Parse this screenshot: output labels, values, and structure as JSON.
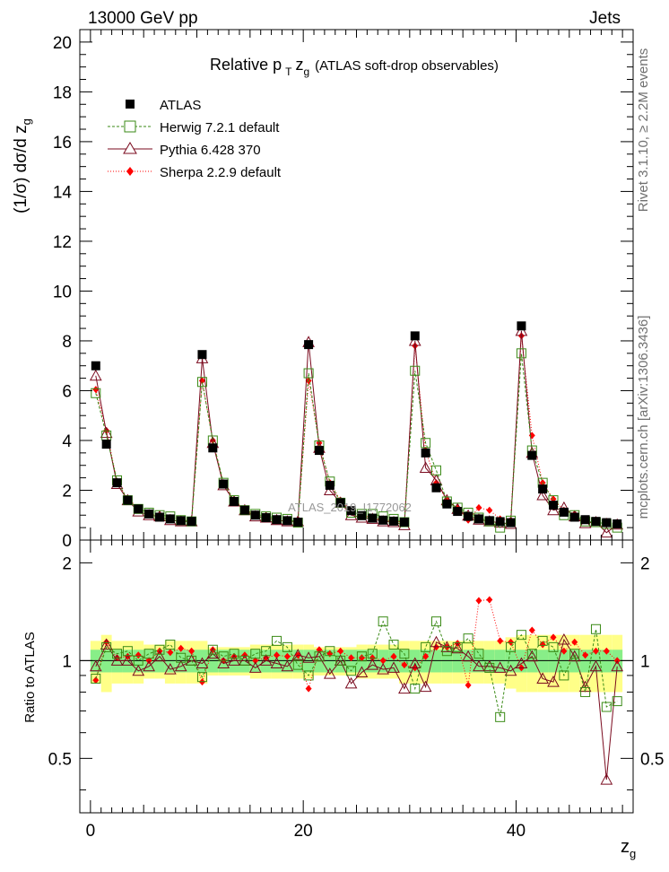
{
  "header": {
    "left": "13000 GeV pp",
    "right": "Jets"
  },
  "side_text": {
    "rivet": "Rivet 3.1.10, ≥ 2.2M events",
    "site": "mcplots.cern.ch [arXiv:1306.3436]"
  },
  "watermark": "ATLAS_2019_I1772062",
  "colors": {
    "atlas": "#000000",
    "herwig": "#3a8a16",
    "pythia": "#7a0a1e",
    "sherpa": "#ff0000",
    "band_inner": "#88ee88",
    "band_outer": "#ffff88"
  },
  "chart_data": [
    {
      "type": "line",
      "title": "Relative p_T z_g (ATLAS soft-drop observables)",
      "title_parts": {
        "main": "Relative p",
        "sub": "T",
        "var": "z",
        "varsub": "g",
        "rest": "(ATLAS soft-drop observables)"
      },
      "ylabel": "(1/σ) dσ/d z_g",
      "ylabel_parts": {
        "main": "(1/σ) dσ/d z",
        "sub": "g"
      },
      "xlim": [
        -1,
        51
      ],
      "ylim": [
        0,
        20.5
      ],
      "yticks": [
        0,
        2,
        4,
        6,
        8,
        10,
        12,
        14,
        16,
        18,
        20
      ],
      "x": [
        0.5,
        1.5,
        2.5,
        3.5,
        4.5,
        5.5,
        6.5,
        7.5,
        8.5,
        9.5,
        10.5,
        11.5,
        12.5,
        13.5,
        14.5,
        15.5,
        16.5,
        17.5,
        18.5,
        19.5,
        20.5,
        21.5,
        22.5,
        23.5,
        24.5,
        25.5,
        26.5,
        27.5,
        28.5,
        29.5,
        30.5,
        31.5,
        32.5,
        33.5,
        34.5,
        35.5,
        36.5,
        37.5,
        38.5,
        39.5,
        40.5,
        41.5,
        42.5,
        43.5,
        44.5,
        45.5,
        46.5,
        47.5,
        48.5,
        49.5
      ],
      "legend": [
        {
          "label": "ATLAS",
          "series": "atlas"
        },
        {
          "label": "Herwig 7.2.1 default",
          "series": "herwig"
        },
        {
          "label": "Pythia 6.428 370",
          "series": "pythia"
        },
        {
          "label": "Sherpa 2.2.9 default",
          "series": "sherpa"
        }
      ],
      "series": [
        {
          "name": "ATLAS",
          "key": "atlas",
          "values": [
            7.0,
            3.85,
            2.3,
            1.6,
            1.25,
            1.05,
            0.92,
            0.85,
            0.78,
            0.75,
            7.45,
            3.7,
            2.25,
            1.55,
            1.2,
            1.0,
            0.9,
            0.82,
            0.78,
            0.72,
            7.85,
            3.6,
            2.2,
            1.5,
            1.18,
            0.98,
            0.88,
            0.8,
            0.76,
            0.72,
            8.2,
            3.5,
            2.1,
            1.45,
            1.15,
            0.95,
            0.85,
            0.78,
            0.74,
            0.7,
            8.6,
            3.4,
            2.05,
            1.4,
            1.12,
            0.92,
            0.82,
            0.75,
            0.7,
            0.65
          ]
        },
        {
          "name": "Herwig 7.2.1 default",
          "key": "herwig",
          "values": [
            5.9,
            4.2,
            2.4,
            1.6,
            1.25,
            1.1,
            1.0,
            0.95,
            0.8,
            0.75,
            6.35,
            4.0,
            2.3,
            1.6,
            1.2,
            1.05,
            0.95,
            0.9,
            0.85,
            0.7,
            6.7,
            3.8,
            2.35,
            1.5,
            1.1,
            1.05,
            1.05,
            0.95,
            0.85,
            0.72,
            6.8,
            3.9,
            2.8,
            1.55,
            1.3,
            1.1,
            0.9,
            0.75,
            0.5,
            0.78,
            7.5,
            3.6,
            2.3,
            1.6,
            1.0,
            1.0,
            0.75,
            0.72,
            0.65,
            0.5
          ]
        },
        {
          "name": "Pythia 6.428 370",
          "key": "pythia",
          "values": [
            6.6,
            4.3,
            2.25,
            1.6,
            1.15,
            1.0,
            0.95,
            0.8,
            0.75,
            0.75,
            7.3,
            3.9,
            2.2,
            1.55,
            1.2,
            0.95,
            0.9,
            0.8,
            0.75,
            0.75,
            7.95,
            3.7,
            2.0,
            1.5,
            1.0,
            0.9,
            0.85,
            0.75,
            0.72,
            0.6,
            8.0,
            2.9,
            2.4,
            1.6,
            1.25,
            0.98,
            0.82,
            0.75,
            0.7,
            0.65,
            8.4,
            3.5,
            1.8,
            1.2,
            1.3,
            0.95,
            0.68,
            0.72,
            0.3,
            0.62
          ]
        },
        {
          "name": "Sherpa 2.2.9 default",
          "key": "sherpa",
          "values": [
            6.05,
            4.4,
            2.35,
            1.65,
            1.3,
            1.05,
            0.98,
            0.9,
            0.85,
            0.8,
            6.4,
            4.0,
            2.25,
            1.6,
            1.25,
            1.0,
            0.92,
            0.85,
            0.8,
            0.75,
            6.4,
            3.9,
            2.3,
            1.6,
            1.2,
            1.0,
            0.9,
            0.8,
            0.78,
            0.7,
            7.8,
            3.6,
            2.3,
            1.6,
            1.3,
            0.8,
            1.3,
            1.2,
            0.85,
            0.8,
            8.2,
            4.2,
            2.3,
            1.65,
            1.2,
            1.05,
            0.85,
            0.8,
            0.75,
            0.65
          ]
        }
      ]
    },
    {
      "type": "line",
      "ylabel": "Ratio to ATLAS",
      "xlabel": "z_g",
      "xlabel_parts": {
        "main": "z",
        "sub": "g"
      },
      "xlim": [
        -1,
        51
      ],
      "ylim": [
        0.34,
        2.35
      ],
      "yticks": [
        0.5,
        1,
        2
      ],
      "xticks": [
        0,
        20,
        40
      ],
      "band_inner": [
        0.08,
        0.08,
        0.08,
        0.08,
        0.08,
        0.08,
        0.08,
        0.08,
        0.08,
        0.08,
        0.08,
        0.08,
        0.08,
        0.08,
        0.08,
        0.08,
        0.08,
        0.08,
        0.08,
        0.08,
        0.08,
        0.08,
        0.08,
        0.08,
        0.08,
        0.08,
        0.08,
        0.08,
        0.08,
        0.08,
        0.08,
        0.08,
        0.08,
        0.08,
        0.08,
        0.08,
        0.08,
        0.08,
        0.08,
        0.08,
        0.08,
        0.08,
        0.08,
        0.08,
        0.08,
        0.08,
        0.08,
        0.08,
        0.08,
        0.08
      ],
      "band_outer": [
        0.15,
        0.2,
        0.15,
        0.15,
        0.15,
        0.12,
        0.12,
        0.15,
        0.15,
        0.15,
        0.15,
        0.1,
        0.1,
        0.1,
        0.1,
        0.12,
        0.12,
        0.12,
        0.12,
        0.12,
        0.12,
        0.1,
        0.1,
        0.1,
        0.1,
        0.12,
        0.12,
        0.12,
        0.12,
        0.15,
        0.15,
        0.15,
        0.15,
        0.15,
        0.15,
        0.15,
        0.15,
        0.15,
        0.15,
        0.18,
        0.2,
        0.2,
        0.2,
        0.2,
        0.2,
        0.2,
        0.2,
        0.2,
        0.2,
        0.2
      ],
      "series": [
        {
          "name": "Herwig 7.2.1 default",
          "key": "herwig",
          "values": [
            0.88,
            1.1,
            1.05,
            1.07,
            1.0,
            1.05,
            1.08,
            1.12,
            1.02,
            1.0,
            0.89,
            1.08,
            1.03,
            1.05,
            1.0,
            1.05,
            1.07,
            1.15,
            1.1,
            0.97,
            0.9,
            1.03,
            1.07,
            1.0,
            0.93,
            1.03,
            1.05,
            1.32,
            1.12,
            1.05,
            0.82,
            1.1,
            1.32,
            1.07,
            1.1,
            1.17,
            1.05,
            0.95,
            0.67,
            1.1,
            1.2,
            1.05,
            1.15,
            1.1,
            0.9,
            1.05,
            0.8,
            1.25,
            0.72,
            0.75
          ]
        },
        {
          "name": "Pythia 6.428 370",
          "key": "pythia",
          "values": [
            0.96,
            1.12,
            1.0,
            1.0,
            0.93,
            0.96,
            1.03,
            0.94,
            0.96,
            1.0,
            0.98,
            1.05,
            0.98,
            1.0,
            1.0,
            0.95,
            1.0,
            0.98,
            0.96,
            1.04,
            1.02,
            1.03,
            0.91,
            1.0,
            0.85,
            0.92,
            0.97,
            0.94,
            0.95,
            0.82,
            0.98,
            0.83,
            1.14,
            1.1,
            1.09,
            1.03,
            0.96,
            0.96,
            0.95,
            0.93,
            0.98,
            1.03,
            0.88,
            0.86,
            1.16,
            1.03,
            0.83,
            0.96,
            0.43,
            0.96
          ]
        },
        {
          "name": "Sherpa 2.2.9 default",
          "key": "sherpa",
          "values": [
            0.87,
            1.14,
            1.02,
            1.03,
            1.04,
            1.0,
            1.07,
            1.06,
            1.09,
            1.07,
            0.86,
            1.08,
            1.0,
            1.03,
            1.04,
            1.0,
            1.02,
            1.04,
            1.03,
            1.04,
            0.82,
            1.08,
            1.05,
            1.07,
            1.02,
            1.02,
            1.02,
            1.0,
            1.03,
            0.97,
            0.95,
            1.03,
            1.1,
            1.1,
            1.13,
            0.84,
            1.53,
            1.54,
            1.15,
            1.14,
            0.95,
            1.24,
            1.12,
            1.18,
            1.07,
            1.14,
            1.04,
            1.07,
            1.07,
            1.0
          ]
        }
      ]
    }
  ]
}
